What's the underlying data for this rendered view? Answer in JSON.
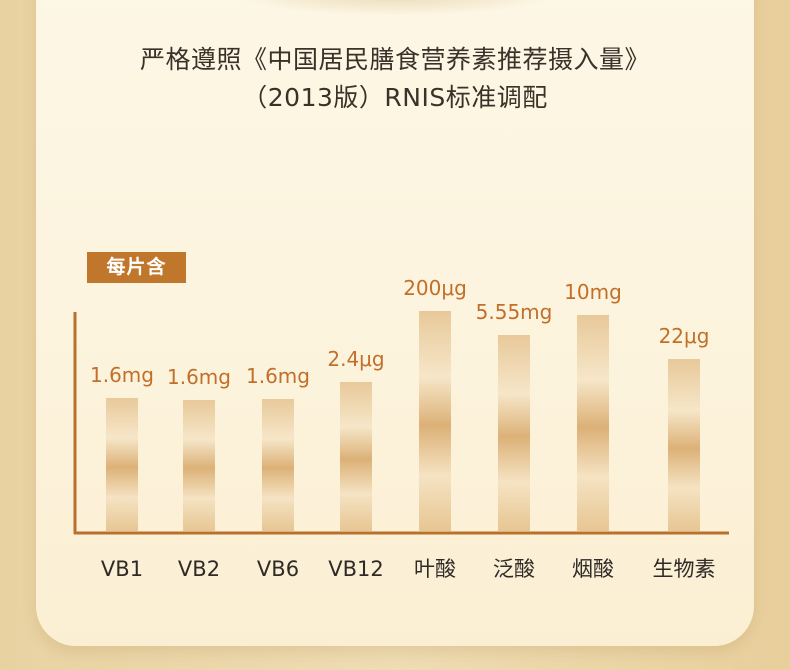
{
  "heading": {
    "line1": "严格遵照《中国居民膳食营养素推荐摄入量》",
    "line2": "（2013版）RNIS标准调配"
  },
  "badge": "每片含",
  "colors": {
    "accent": "#c0772b",
    "value_text": "#c26f2a",
    "axis": "#b8712c"
  },
  "chart_data": {
    "type": "bar",
    "categories": [
      "VB1",
      "VB2",
      "VB6",
      "VB12",
      "叶酸",
      "泛酸",
      "烟酸",
      "生物素"
    ],
    "value_labels": [
      "1.6mg",
      "1.6mg",
      "1.6mg",
      "2.4μg",
      "200μg",
      "5.55mg",
      "10mg",
      "22μg"
    ],
    "title": "",
    "xlabel": "",
    "ylabel": "",
    "grid": false,
    "legend": "none"
  }
}
